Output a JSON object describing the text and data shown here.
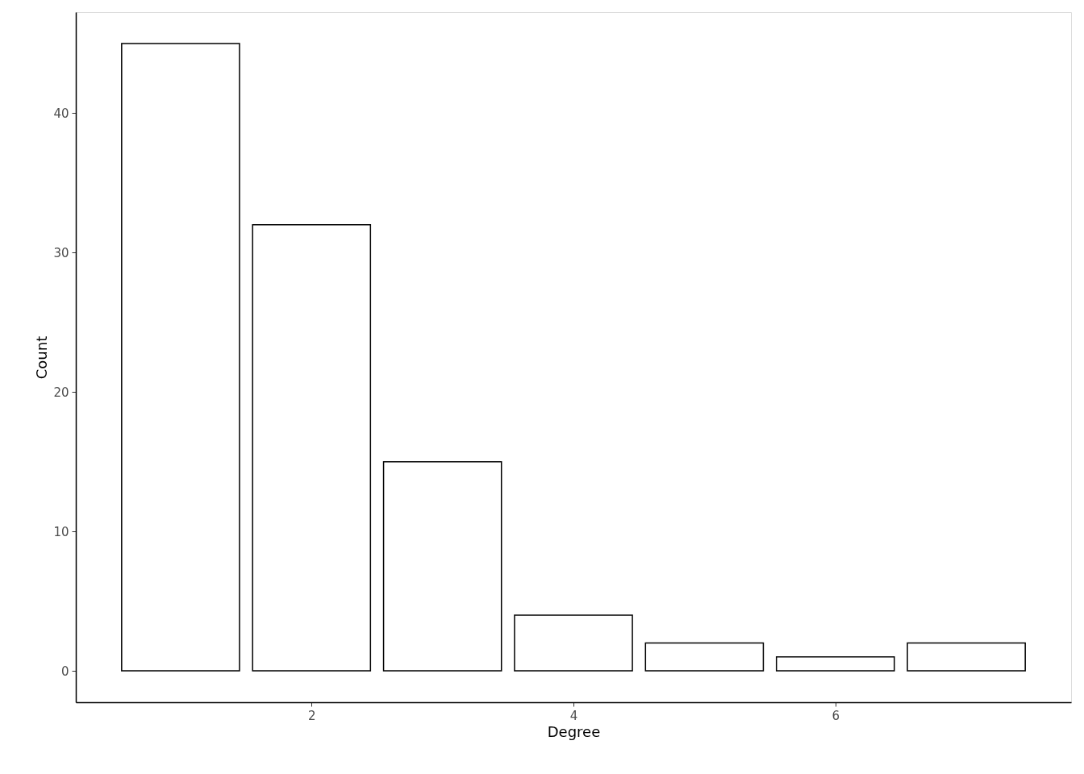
{
  "chart_data": {
    "type": "bar",
    "xlabel": "Degree",
    "ylabel": "Count",
    "x": [
      1,
      2,
      3,
      4,
      5,
      6,
      7
    ],
    "values": [
      45,
      32,
      15,
      4,
      2,
      1,
      2
    ],
    "color": "#ffffff",
    "xlim": [
      0.2,
      7.8
    ],
    "xticks": [
      2,
      4,
      6
    ],
    "ylim": [
      -2.25,
      47.25
    ],
    "yticks": [
      0,
      10,
      20,
      30,
      40
    ],
    "grid": false
  }
}
